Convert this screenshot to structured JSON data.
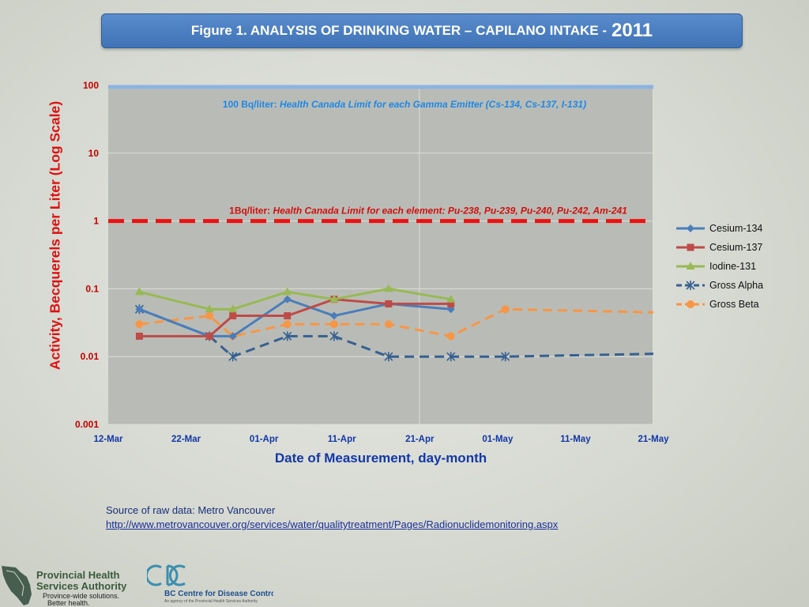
{
  "title": {
    "text": "Figure 1. ANALYSIS OF DRINKING  WATER – CAPILANO INTAKE - ",
    "year": "2011"
  },
  "chart_data": {
    "type": "line",
    "ylabel": "Activity, Becquerels per Liter (Log Scale)",
    "xlabel": "Date of Measurement, day-month",
    "y_scale": "log",
    "ylim": [
      0.001,
      100
    ],
    "y_ticks": [
      "100",
      "10",
      "1",
      "0.1",
      "0.01",
      "0.001"
    ],
    "x_ticks": [
      "12-Mar",
      "22-Mar",
      "01-Apr",
      "11-Apr",
      "21-Apr",
      "01-May",
      "11-May",
      "21-May"
    ],
    "xlim": [
      "2011-03-12",
      "2011-05-21"
    ],
    "grid": true,
    "legend_position": "right",
    "series": [
      {
        "name": "Cesium-134",
        "color": "#4a7ebb",
        "marker": "diamond",
        "dash": "solid",
        "points": [
          [
            "2011-03-16",
            0.05
          ],
          [
            "2011-03-25",
            0.02
          ],
          [
            "2011-03-28",
            0.02
          ],
          [
            "2011-04-04",
            0.07
          ],
          [
            "2011-04-10",
            0.04
          ],
          [
            "2011-04-17",
            0.06
          ],
          [
            "2011-04-25",
            0.05
          ]
        ]
      },
      {
        "name": "Cesium-137",
        "color": "#be4b48",
        "marker": "square",
        "dash": "solid",
        "points": [
          [
            "2011-03-16",
            0.02
          ],
          [
            "2011-03-25",
            0.02
          ],
          [
            "2011-03-28",
            0.04
          ],
          [
            "2011-04-04",
            0.04
          ],
          [
            "2011-04-10",
            0.07
          ],
          [
            "2011-04-17",
            0.06
          ],
          [
            "2011-04-25",
            0.06
          ]
        ]
      },
      {
        "name": "Iodine-131",
        "color": "#98b954",
        "marker": "triangle",
        "dash": "solid",
        "points": [
          [
            "2011-03-16",
            0.09
          ],
          [
            "2011-03-25",
            0.05
          ],
          [
            "2011-03-28",
            0.05
          ],
          [
            "2011-04-04",
            0.09
          ],
          [
            "2011-04-10",
            0.07
          ],
          [
            "2011-04-17",
            0.1
          ],
          [
            "2011-04-25",
            0.07
          ]
        ]
      },
      {
        "name": "Gross Alpha",
        "color": "#376092",
        "marker": "star",
        "dash": "dashed",
        "points": [
          [
            "2011-03-16",
            0.05
          ],
          [
            "2011-03-25",
            0.02
          ],
          [
            "2011-03-28",
            0.01
          ],
          [
            "2011-04-04",
            0.02
          ],
          [
            "2011-04-10",
            0.02
          ],
          [
            "2011-04-17",
            0.01
          ],
          [
            "2011-04-25",
            0.01
          ],
          [
            "2011-05-02",
            0.01
          ],
          [
            "2011-05-21",
            0.011
          ]
        ]
      },
      {
        "name": "Gross Beta",
        "color": "#f79646",
        "marker": "circle",
        "dash": "dashed",
        "points": [
          [
            "2011-03-16",
            0.03
          ],
          [
            "2011-03-25",
            0.04
          ],
          [
            "2011-03-28",
            0.02
          ],
          [
            "2011-04-04",
            0.03
          ],
          [
            "2011-04-10",
            0.03
          ],
          [
            "2011-04-17",
            0.03
          ],
          [
            "2011-04-25",
            0.02
          ],
          [
            "2011-05-02",
            0.05
          ],
          [
            "2011-05-21",
            0.045
          ]
        ]
      }
    ],
    "reference_lines": [
      {
        "value": 100,
        "color": "#8db4e2",
        "dash": "solid",
        "label_prefix": "100 Bq/liter: ",
        "label_text": "Health Canada Limit for each Gamma Emitter (Cs-134, Cs-137, I-131)",
        "label_color": "#1e88e5"
      },
      {
        "value": 1,
        "color": "#ee1111",
        "dash": "dashed",
        "label_prefix": "1Bq/liter: ",
        "label_text": "Health Canada Limit for each element: Pu-238, Pu-239, Pu-240, Pu-242, Am-241",
        "label_color": "#d01010"
      }
    ],
    "colors": {
      "plot_bg": "#b9bcb6",
      "grid": "#dcdfd9",
      "axis_text": "#c00000",
      "xtick_text": "#1237a8"
    }
  },
  "source": {
    "text": "Source of raw data: Metro Vancouver",
    "url": "http://www.metrovancouver.org/services/water/qualitytreatment/Pages/Radionuclidemonitoring.aspx"
  },
  "logos": {
    "phsa_line1": "Provincial Health",
    "phsa_line2": "Services Authority",
    "phsa_tag1": "Province-wide solutions.",
    "phsa_tag2": "Better health.",
    "bccdc_name": "BC Centre for Disease Control",
    "bccdc_tag": "An agency of the Provincial Health Services Authority"
  }
}
